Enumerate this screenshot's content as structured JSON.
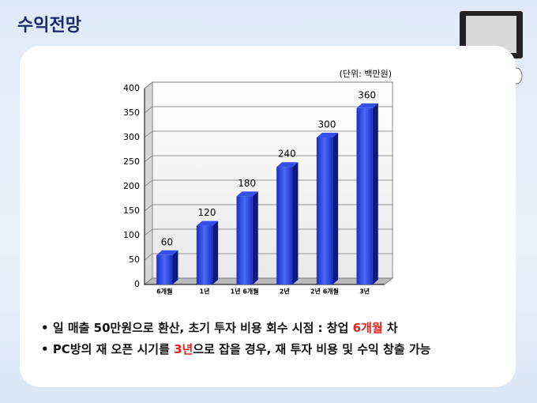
{
  "slide_title": "수익전망",
  "chart_data": {
    "type": "bar3d",
    "subtitle": "(단위: 백만원)",
    "categories": [
      "6개월",
      "1년",
      "1년 6개월",
      "2년",
      "2년 6개월",
      "3년"
    ],
    "values": [
      60,
      120,
      180,
      240,
      300,
      360
    ],
    "color": "#2a48e0",
    "ylim": [
      0,
      400
    ],
    "yticks": [
      0,
      50,
      100,
      150,
      200,
      250,
      300,
      350,
      400
    ],
    "grid": true
  },
  "bullets": [
    {
      "segments": [
        {
          "text": "일 매출 50만원으로 환산, 초기 투자 비용 회수 시점 : 창업 "
        },
        {
          "text": "6개월",
          "color": "#e8201c"
        },
        {
          "text": " 차"
        }
      ]
    },
    {
      "segments": [
        {
          "text": "PC방의 재 오픈 시기를 "
        },
        {
          "text": "3년",
          "color": "#e8201c"
        },
        {
          "text": "으로 잡을 경우, 재 투자 비용 및 수익 창출 가능"
        }
      ]
    }
  ]
}
